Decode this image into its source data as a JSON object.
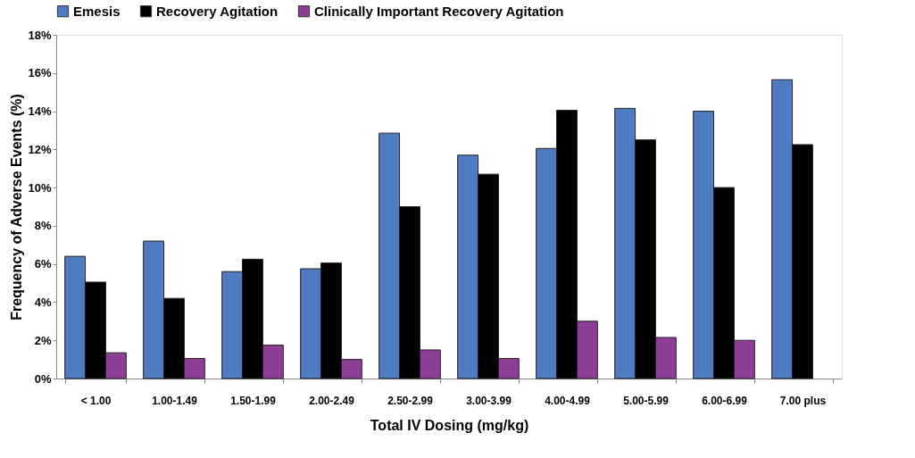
{
  "chart_data": {
    "type": "bar",
    "xlabel": "Total IV Dosing (mg/kg)",
    "ylabel": "Frequency of Adverse Events (%)",
    "categories": [
      "< 1.00",
      "1.00-1.49",
      "1.50-1.99",
      "2.00-2.49",
      "2.50-2.99",
      "3.00-3.99",
      "4.00-4.99",
      "5.00-5.99",
      "6.00-6.99",
      "7.00 plus"
    ],
    "series": [
      {
        "name": "Emesis",
        "color": "#4f7bc3",
        "values": [
          6.4,
          7.2,
          5.6,
          5.75,
          12.85,
          11.7,
          12.05,
          14.15,
          14.0,
          15.65
        ]
      },
      {
        "name": "Recovery Agitation",
        "color": "#000000",
        "values": [
          5.05,
          4.2,
          6.25,
          6.05,
          9.0,
          10.7,
          14.05,
          12.5,
          10.0,
          12.25
        ]
      },
      {
        "name": "Clinically Important Recovery Agitation",
        "color": "#8e3e96",
        "values": [
          1.35,
          1.05,
          1.75,
          1.0,
          1.5,
          1.05,
          3.0,
          2.15,
          2.0,
          null
        ]
      }
    ],
    "ylim": [
      0,
      18
    ],
    "yticks": [
      {
        "value": 0,
        "label": "0%"
      },
      {
        "value": 2,
        "label": "2%"
      },
      {
        "value": 4,
        "label": "4%"
      },
      {
        "value": 6,
        "label": "6%"
      },
      {
        "value": 8,
        "label": "8%"
      },
      {
        "value": 10,
        "label": "10%"
      },
      {
        "value": 12,
        "label": "12%"
      },
      {
        "value": 14,
        "label": "14%"
      },
      {
        "value": 16,
        "label": "16%"
      },
      {
        "value": 18,
        "label": "18%"
      }
    ],
    "grid": false,
    "legend": "top"
  }
}
